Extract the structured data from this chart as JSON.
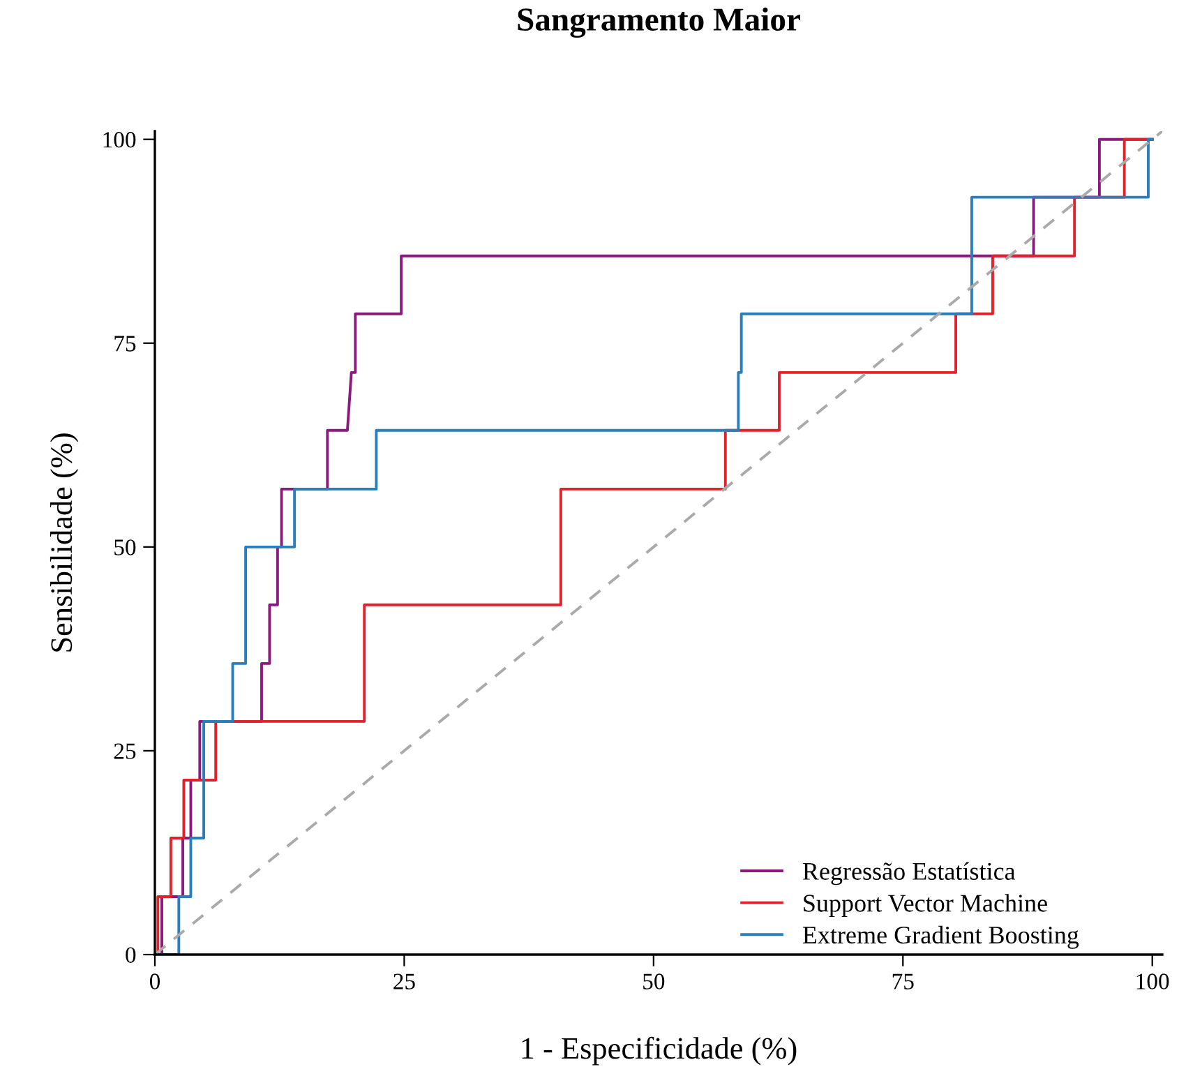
{
  "chart_data": {
    "type": "line",
    "title": "Sangramento Maior",
    "xlabel": "1 - Especificidade (%)",
    "ylabel": "Sensibilidade (%)",
    "xlim": [
      0,
      101
    ],
    "ylim": [
      0,
      101
    ],
    "xticks": [
      0,
      25,
      50,
      75,
      100
    ],
    "yticks": [
      0,
      25,
      50,
      75,
      100
    ],
    "grid": false,
    "legend": "bottom right",
    "marker": "none",
    "series": [
      {
        "name": "Regressão Estatística",
        "color": "#8b1a7e",
        "x": [
          0,
          0.7,
          0.7,
          2.8,
          2.8,
          3.6,
          3.6,
          4.5,
          4.5,
          10.7,
          10.7,
          11.5,
          11.5,
          12.3,
          12.3,
          12.7,
          12.7,
          17.3,
          17.3,
          19.3,
          19.7,
          20.1,
          20.1,
          24.7,
          24.7,
          88.1,
          88.1,
          94.7,
          94.7,
          100
        ],
        "values": [
          0,
          0,
          7.1,
          7.1,
          14.3,
          14.3,
          21.4,
          21.4,
          28.6,
          28.6,
          35.7,
          35.7,
          42.9,
          42.9,
          50,
          50,
          57.1,
          57.1,
          64.3,
          64.3,
          71.4,
          71.4,
          78.6,
          78.6,
          85.7,
          85.7,
          92.9,
          92.9,
          100,
          100
        ]
      },
      {
        "name": "Support Vector Machine",
        "color": "#e0222d",
        "x": [
          0,
          0.3,
          0.3,
          1.6,
          1.6,
          2.9,
          2.9,
          6.1,
          6.1,
          21.0,
          21.0,
          40.7,
          40.7,
          57.2,
          57.2,
          62.6,
          62.6,
          80.3,
          80.3,
          84.0,
          84.0,
          92.2,
          92.2,
          97.2,
          97.2,
          100
        ],
        "values": [
          0,
          0,
          7.1,
          7.1,
          14.3,
          14.3,
          21.4,
          21.4,
          28.6,
          28.6,
          42.9,
          42.9,
          57.1,
          57.1,
          64.3,
          64.3,
          71.4,
          71.4,
          78.6,
          78.6,
          85.7,
          85.7,
          92.9,
          92.9,
          100,
          100
        ]
      },
      {
        "name": "Extreme Gradient Boosting",
        "color": "#2a7fbb",
        "x": [
          0,
          2.4,
          2.4,
          3.6,
          3.6,
          4.9,
          4.9,
          7.8,
          7.8,
          9.1,
          9.1,
          14.0,
          14.0,
          22.2,
          22.2,
          58.5,
          58.5,
          58.8,
          58.8,
          81.9,
          81.9,
          99.6,
          99.6,
          100
        ],
        "values": [
          0,
          0,
          7.1,
          7.1,
          14.3,
          14.3,
          28.6,
          28.6,
          35.7,
          35.7,
          50,
          50,
          57.1,
          57.1,
          64.3,
          64.3,
          71.4,
          71.4,
          78.6,
          78.6,
          92.9,
          92.9,
          100,
          100
        ]
      },
      {
        "color": "#aaaaaa",
        "line_style": "dashed",
        "x": [
          0,
          101
        ],
        "values": [
          0,
          101
        ]
      }
    ]
  }
}
